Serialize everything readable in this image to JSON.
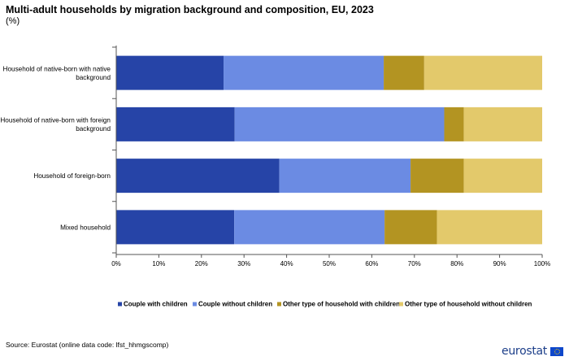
{
  "title": "Multi-adult households by migration background and composition, EU, 2023",
  "subtitle": "(%)",
  "source": "Source: Eurostat (online data code: lfst_hhmgscomp)",
  "logo_text": "eurostat",
  "chart_data": {
    "type": "bar",
    "orientation": "horizontal",
    "stacked": true,
    "categories": [
      [
        "Household of native-born with native",
        "background"
      ],
      [
        "Household of native-born with foreign",
        "background"
      ],
      [
        "Household of foreign-born"
      ],
      [
        "Mixed household"
      ]
    ],
    "series": [
      {
        "name": "Couple with children",
        "color": "#2644a7",
        "values": [
          25.2,
          27.8,
          38.3,
          27.7
        ]
      },
      {
        "name": "Couple without children",
        "color": "#6b8be3",
        "values": [
          37.6,
          49.2,
          30.8,
          35.3
        ]
      },
      {
        "name": "Other type of household with children",
        "color": "#b39422",
        "values": [
          9.5,
          4.6,
          12.5,
          12.3
        ]
      },
      {
        "name": "Other type of household without children",
        "color": "#e3c96b",
        "values": [
          27.7,
          18.4,
          18.4,
          24.7
        ]
      }
    ],
    "xlim": [
      0,
      100
    ],
    "xticks": [
      "0%",
      "10%",
      "20%",
      "30%",
      "40%",
      "50%",
      "60%",
      "70%",
      "80%",
      "90%",
      "100%"
    ],
    "grid": false,
    "legend": "bottom"
  }
}
